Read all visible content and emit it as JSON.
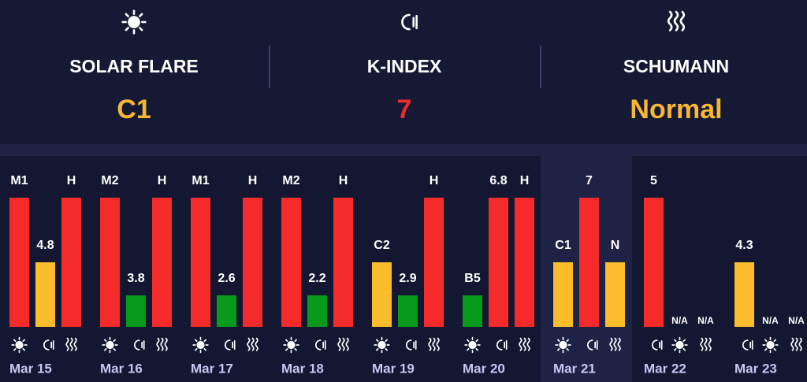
{
  "header": [
    {
      "label": "SOLAR FLARE",
      "value": "C1",
      "color": "#f7b733",
      "icon": "sun"
    },
    {
      "label": "K-INDEX",
      "value": 7,
      "color": "#ee2b2b",
      "icon": "magnet"
    },
    {
      "label": "SCHUMANN",
      "value": "Normal",
      "color": "#f7b733",
      "icon": "waves"
    }
  ],
  "palette": [
    "#f52a2a",
    "#fbbd2b",
    "#079a1b"
  ],
  "days": [
    {
      "date": "Mar 15",
      "bars": [
        {
          "label": "M1",
          "color": "#f52a2a",
          "icon": "sun"
        },
        {
          "label": 4.8,
          "color": "#fbbd2b",
          "icon": "magnet"
        },
        {
          "label": "H",
          "color": "#f52a2a",
          "icon": "waves"
        }
      ]
    },
    {
      "date": "Mar 16",
      "bars": [
        {
          "label": "M2",
          "color": "#f52a2a",
          "icon": "sun"
        },
        {
          "label": 3.8,
          "color": "#079a1b",
          "icon": "magnet"
        },
        {
          "label": "H",
          "color": "#f52a2a",
          "icon": "waves"
        }
      ]
    },
    {
      "date": "Mar 17",
      "bars": [
        {
          "label": "M1",
          "color": "#f52a2a",
          "icon": "sun"
        },
        {
          "label": 2.6,
          "color": "#079a1b",
          "icon": "magnet"
        },
        {
          "label": "H",
          "color": "#f52a2a",
          "icon": "waves"
        }
      ]
    },
    {
      "date": "Mar 18",
      "bars": [
        {
          "label": "M2",
          "color": "#f52a2a",
          "icon": "sun"
        },
        {
          "label": 2.2,
          "color": "#079a1b",
          "icon": "magnet"
        },
        {
          "label": "H",
          "color": "#f52a2a",
          "icon": "waves"
        }
      ]
    },
    {
      "date": "Mar 19",
      "bars": [
        {
          "label": "C2",
          "color": "#fbbd2b",
          "icon": "sun"
        },
        {
          "label": 2.9,
          "color": "#079a1b",
          "icon": "magnet"
        },
        {
          "label": "H",
          "color": "#f52a2a",
          "icon": "waves"
        }
      ]
    },
    {
      "date": "Mar 20",
      "bars": [
        {
          "label": "B5",
          "color": "#079a1b",
          "icon": "sun"
        },
        {
          "label": 6.8,
          "color": "#f52a2a",
          "icon": "magnet"
        },
        {
          "label": "H",
          "color": "#f52a2a",
          "icon": "waves"
        }
      ]
    },
    {
      "date": "Mar 21",
      "highlight": true,
      "bars": [
        {
          "label": "C1",
          "color": "#fbbd2b",
          "icon": "sun"
        },
        {
          "label": 7,
          "color": "#f52a2a",
          "icon": "magnet"
        },
        {
          "label": "N",
          "color": "#fbbd2b",
          "icon": "waves"
        }
      ]
    },
    {
      "date": "Mar 22",
      "bars": [
        {
          "label": 5,
          "color": "#f52a2a",
          "icon": "magnet"
        },
        {
          "label": "N/A",
          "icon": "sun"
        },
        {
          "label": "N/A",
          "icon": "waves"
        }
      ]
    },
    {
      "date": "Mar 23",
      "bars": [
        {
          "label": 4.3,
          "color": "#fbbd2b",
          "icon": "magnet"
        },
        {
          "label": "N/A",
          "icon": "sun"
        },
        {
          "label": "N/A",
          "icon": "waves"
        }
      ]
    }
  ]
}
